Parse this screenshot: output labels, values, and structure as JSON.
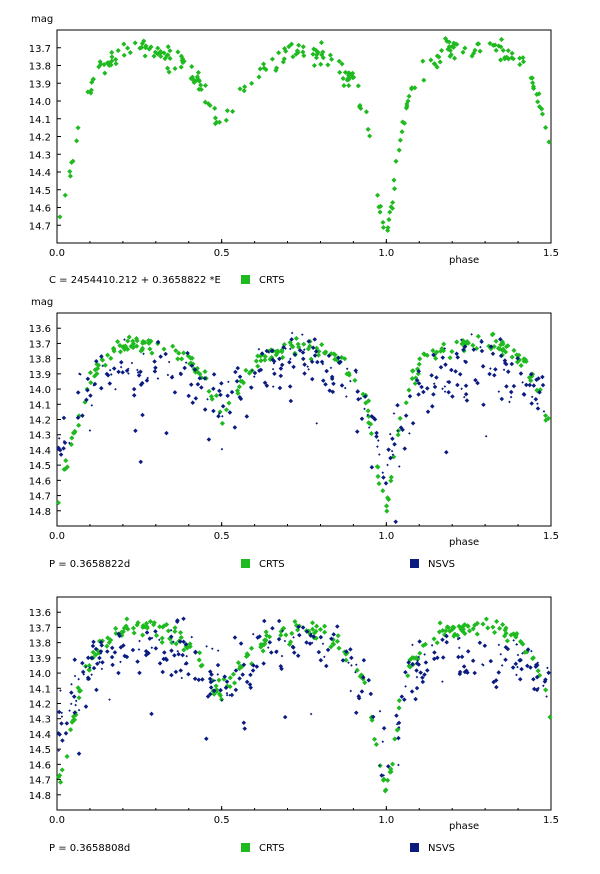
{
  "colors": {
    "crts": "#1fba1f",
    "nsvs": "#0b1c80",
    "frame": "#000000"
  },
  "chart_data": [
    {
      "type": "scatter",
      "ylabel": "mag",
      "xlabel": "phase",
      "xlim": [
        0,
        1.5
      ],
      "ylim": [
        13.6,
        14.8
      ],
      "yticks": [
        "13.7",
        "13.8",
        "13.9",
        "14.0",
        "14.1",
        "14.2",
        "14.3",
        "14.4",
        "14.5",
        "14.6",
        "14.7"
      ],
      "xticks": [
        "0.0",
        "0.5",
        "1.0",
        "1.5"
      ],
      "caption": "C = 2454410.212 + 0.3658822 *E",
      "legend": [
        "CRTS"
      ],
      "series": [
        {
          "name": "CRTS",
          "color": "#1fba1f",
          "noise": 0.03,
          "x": [
            0.0,
            0.02,
            0.05,
            0.08,
            0.12,
            0.18,
            0.25,
            0.32,
            0.38,
            0.42,
            0.45,
            0.48,
            0.5,
            0.52,
            0.55,
            0.6,
            0.65,
            0.7,
            0.75,
            0.8,
            0.85,
            0.9,
            0.94,
            0.96,
            0.98,
            1.0,
            1.02,
            1.04,
            1.07,
            1.12,
            1.18,
            1.25,
            1.32,
            1.38,
            1.42,
            1.45,
            1.48,
            1.5
          ],
          "y": [
            14.75,
            14.6,
            14.3,
            14.05,
            13.85,
            13.73,
            13.7,
            13.72,
            13.78,
            13.85,
            13.95,
            14.1,
            14.17,
            14.12,
            13.98,
            13.85,
            13.76,
            13.73,
            13.72,
            13.74,
            13.8,
            13.9,
            14.1,
            14.35,
            14.6,
            14.78,
            14.55,
            14.25,
            13.95,
            13.8,
            13.72,
            13.69,
            13.7,
            13.74,
            13.82,
            13.95,
            14.12,
            14.25
          ]
        }
      ]
    },
    {
      "type": "scatter",
      "ylabel": "mag",
      "xlabel": "phase",
      "xlim": [
        0,
        1.5
      ],
      "ylim": [
        13.5,
        14.9
      ],
      "yticks": [
        "13.6",
        "13.7",
        "13.8",
        "13.9",
        "14.0",
        "14.1",
        "14.2",
        "14.3",
        "14.4",
        "14.5",
        "14.6",
        "14.7",
        "14.8"
      ],
      "xticks": [
        "0.0",
        "0.5",
        "1.0",
        "1.5"
      ],
      "caption": "P = 0.3658822d",
      "legend": [
        "CRTS",
        "NSVS"
      ],
      "series": [
        {
          "name": "CRTS",
          "color": "#1fba1f",
          "noise": 0.03,
          "x": [
            0.0,
            0.02,
            0.05,
            0.08,
            0.12,
            0.18,
            0.25,
            0.32,
            0.38,
            0.42,
            0.45,
            0.48,
            0.5,
            0.52,
            0.55,
            0.6,
            0.65,
            0.7,
            0.75,
            0.8,
            0.85,
            0.9,
            0.94,
            0.96,
            0.98,
            1.0,
            1.02,
            1.04,
            1.07,
            1.12,
            1.18,
            1.25,
            1.32,
            1.38,
            1.42,
            1.45,
            1.48,
            1.5
          ],
          "y": [
            14.75,
            14.6,
            14.3,
            14.05,
            13.85,
            13.73,
            13.7,
            13.72,
            13.78,
            13.85,
            13.95,
            14.1,
            14.17,
            14.12,
            13.98,
            13.85,
            13.76,
            13.73,
            13.72,
            13.74,
            13.8,
            13.9,
            14.1,
            14.35,
            14.6,
            14.78,
            14.55,
            14.25,
            13.95,
            13.8,
            13.72,
            13.69,
            13.7,
            13.74,
            13.82,
            13.95,
            14.12,
            14.25
          ]
        },
        {
          "name": "NSVS",
          "color": "#0b1c80",
          "noise": 0.1,
          "x": [
            0.0,
            0.03,
            0.06,
            0.1,
            0.15,
            0.22,
            0.3,
            0.38,
            0.44,
            0.48,
            0.5,
            0.53,
            0.58,
            0.65,
            0.72,
            0.8,
            0.87,
            0.92,
            0.96,
            1.0,
            1.04,
            1.08,
            1.15,
            1.22,
            1.3,
            1.38,
            1.44,
            1.48,
            1.5
          ],
          "y": [
            14.45,
            14.3,
            14.15,
            13.98,
            13.88,
            13.86,
            13.85,
            13.88,
            13.95,
            14.05,
            14.1,
            14.05,
            13.95,
            13.85,
            13.8,
            13.82,
            13.9,
            14.05,
            14.3,
            14.55,
            14.3,
            14.05,
            13.92,
            13.87,
            13.86,
            13.88,
            13.95,
            14.08,
            14.15
          ]
        }
      ]
    },
    {
      "type": "scatter",
      "ylabel": "",
      "xlabel": "phase",
      "xlim": [
        0,
        1.5
      ],
      "ylim": [
        13.5,
        14.9
      ],
      "yticks": [
        "13.6",
        "13.7",
        "13.8",
        "13.9",
        "14.0",
        "14.1",
        "14.2",
        "14.3",
        "14.4",
        "14.5",
        "14.6",
        "14.7",
        "14.8"
      ],
      "xticks": [
        "0.0",
        "0.5",
        "1.0",
        "1.5"
      ],
      "caption": "P = 0.3658808d",
      "legend": [
        "CRTS",
        "NSVS"
      ],
      "series": [
        {
          "name": "CRTS",
          "color": "#1fba1f",
          "noise": 0.03,
          "x": [
            0.0,
            0.02,
            0.05,
            0.08,
            0.12,
            0.18,
            0.25,
            0.32,
            0.38,
            0.42,
            0.45,
            0.48,
            0.5,
            0.52,
            0.55,
            0.6,
            0.65,
            0.7,
            0.75,
            0.8,
            0.85,
            0.9,
            0.94,
            0.96,
            0.98,
            1.0,
            1.02,
            1.04,
            1.07,
            1.12,
            1.18,
            1.25,
            1.32,
            1.38,
            1.42,
            1.45,
            1.48,
            1.5
          ],
          "y": [
            14.75,
            14.6,
            14.3,
            14.05,
            13.85,
            13.73,
            13.7,
            13.72,
            13.78,
            13.85,
            13.95,
            14.1,
            14.17,
            14.12,
            13.98,
            13.85,
            13.76,
            13.73,
            13.72,
            13.74,
            13.8,
            13.9,
            14.1,
            14.35,
            14.6,
            14.78,
            14.55,
            14.25,
            13.95,
            13.8,
            13.72,
            13.69,
            13.7,
            13.74,
            13.82,
            13.95,
            14.12,
            14.25
          ]
        },
        {
          "name": "NSVS",
          "color": "#0b1c80",
          "noise": 0.09,
          "x": [
            0.0,
            0.03,
            0.06,
            0.1,
            0.15,
            0.22,
            0.3,
            0.38,
            0.44,
            0.48,
            0.5,
            0.53,
            0.58,
            0.65,
            0.72,
            0.8,
            0.87,
            0.92,
            0.96,
            1.0,
            1.04,
            1.08,
            1.15,
            1.22,
            1.3,
            1.38,
            1.44,
            1.48,
            1.5
          ],
          "y": [
            14.4,
            14.25,
            14.1,
            13.95,
            13.86,
            13.84,
            13.83,
            13.86,
            13.94,
            14.05,
            14.12,
            14.06,
            13.95,
            13.84,
            13.8,
            13.82,
            13.9,
            14.05,
            14.28,
            14.5,
            14.28,
            14.02,
            13.9,
            13.86,
            13.85,
            13.87,
            13.95,
            14.08,
            14.14
          ]
        }
      ]
    }
  ]
}
